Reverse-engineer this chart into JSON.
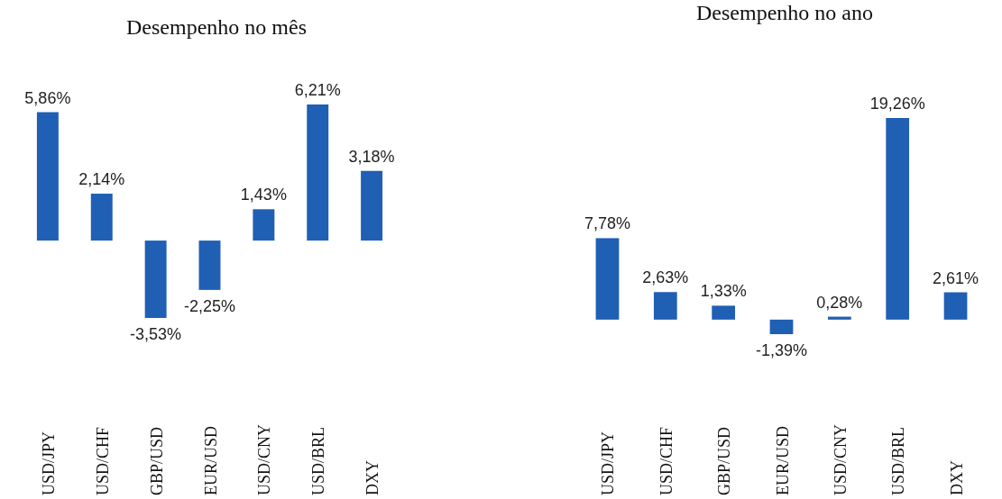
{
  "chart_data": [
    {
      "type": "bar",
      "title": "Desempenho no mês",
      "categories": [
        "USD/JPY",
        "USD/CHF",
        "GBP/USD",
        "EUR/USD",
        "USD/CNY",
        "USD/BRL",
        "DXY"
      ],
      "values": [
        5.86,
        2.14,
        -3.53,
        -2.25,
        1.43,
        6.21,
        3.18
      ],
      "value_labels": [
        "5,86%",
        "2,14%",
        "-3,53%",
        "-2,25%",
        "1,43%",
        "6,21%",
        "3,18%"
      ],
      "color": "#1f5fb4"
    },
    {
      "type": "bar",
      "title": "Desempenho no ano",
      "categories": [
        "USD/JPY",
        "USD/CHF",
        "GBP/USD",
        "EUR/USD",
        "USD/CNY",
        "USD/BRL",
        "DXY"
      ],
      "values": [
        7.78,
        2.63,
        1.33,
        -1.39,
        0.28,
        19.26,
        2.61
      ],
      "value_labels": [
        "7,78%",
        "2,63%",
        "1,33%",
        "-1,39%",
        "0,28%",
        "19,26%",
        "2,61%"
      ],
      "color": "#1f5fb4"
    }
  ]
}
